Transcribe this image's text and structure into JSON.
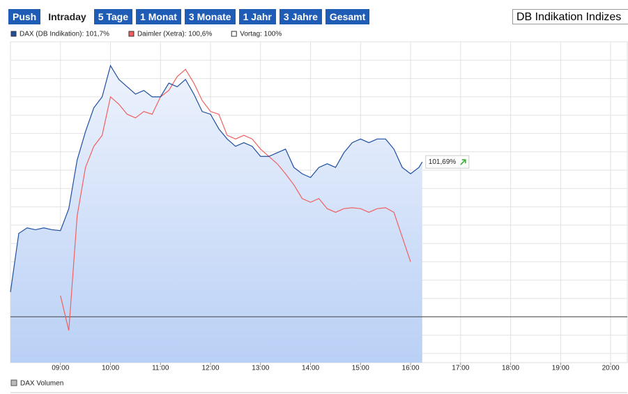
{
  "ui": {
    "tabs": [
      "Push",
      "Intraday",
      "5 Tage",
      "1 Monat",
      "3 Monate",
      "1 Jahr",
      "3 Jahre",
      "Gesamt"
    ],
    "active_tab": "Intraday",
    "selector": "DB Indikation Indizes",
    "volume_legend": "DAX Volumen"
  },
  "chart_data": {
    "type": "line",
    "x": [
      480,
      490,
      500,
      510,
      520,
      530,
      540,
      550,
      560,
      570,
      580,
      590,
      600,
      610,
      620,
      630,
      640,
      650,
      660,
      670,
      680,
      690,
      700,
      710,
      720,
      730,
      740,
      750,
      760,
      770,
      780,
      790,
      800,
      810,
      820,
      830,
      840,
      850,
      860,
      870,
      880,
      890,
      900,
      910,
      920,
      930,
      940,
      950,
      960,
      970,
      974
    ],
    "xlim": [
      480,
      1220
    ],
    "xticks": [
      {
        "value": 540,
        "label": "09:00"
      },
      {
        "value": 600,
        "label": "10:00"
      },
      {
        "value": 660,
        "label": "11:00"
      },
      {
        "value": 720,
        "label": "12:00"
      },
      {
        "value": 780,
        "label": "13:00"
      },
      {
        "value": 840,
        "label": "14:00"
      },
      {
        "value": 900,
        "label": "15:00"
      },
      {
        "value": 960,
        "label": "16:00"
      },
      {
        "value": 1020,
        "label": "17:00"
      },
      {
        "value": 1080,
        "label": "18:00"
      },
      {
        "value": 1140,
        "label": "19:00"
      },
      {
        "value": 1200,
        "label": "20:00"
      }
    ],
    "ylim": [
      99.5,
      103.0
    ],
    "grid": true,
    "series": [
      {
        "name": "DAX (DB Indikation): 101,7%",
        "color": "#1f4fa0",
        "fill": true,
        "values": [
          100.27,
          100.91,
          100.97,
          100.95,
          100.97,
          100.95,
          100.94,
          101.18,
          101.71,
          102.02,
          102.28,
          102.4,
          102.74,
          102.59,
          102.51,
          102.43,
          102.47,
          102.4,
          102.4,
          102.55,
          102.51,
          102.59,
          102.43,
          102.24,
          102.21,
          102.05,
          101.94,
          101.86,
          101.9,
          101.86,
          101.75,
          101.75,
          101.79,
          101.83,
          101.63,
          101.56,
          101.52,
          101.63,
          101.67,
          101.63,
          101.79,
          101.9,
          101.94,
          101.9,
          101.94,
          101.94,
          101.83,
          101.63,
          101.56,
          101.63,
          101.69
        ]
      },
      {
        "name": "Daimler (Xetra): 100,6%",
        "color": "#f06060",
        "fill": false,
        "values": [
          null,
          null,
          null,
          null,
          null,
          null,
          100.23,
          99.85,
          101.1,
          101.63,
          101.86,
          101.98,
          102.4,
          102.32,
          102.21,
          102.17,
          102.24,
          102.21,
          102.4,
          102.47,
          102.62,
          102.7,
          102.55,
          102.36,
          102.24,
          102.21,
          101.98,
          101.94,
          101.98,
          101.94,
          101.83,
          101.75,
          101.67,
          101.56,
          101.44,
          101.29,
          101.25,
          101.29,
          101.18,
          101.14,
          101.18,
          101.19,
          101.18,
          101.14,
          101.18,
          101.19,
          101.14,
          100.87,
          100.6,
          null,
          null
        ]
      }
    ],
    "reference": {
      "name": "Vortag: 100%",
      "value": 100,
      "color": "#ffffff"
    },
    "annotation": {
      "text": "101,69%",
      "x": 974,
      "y": 101.69
    }
  }
}
